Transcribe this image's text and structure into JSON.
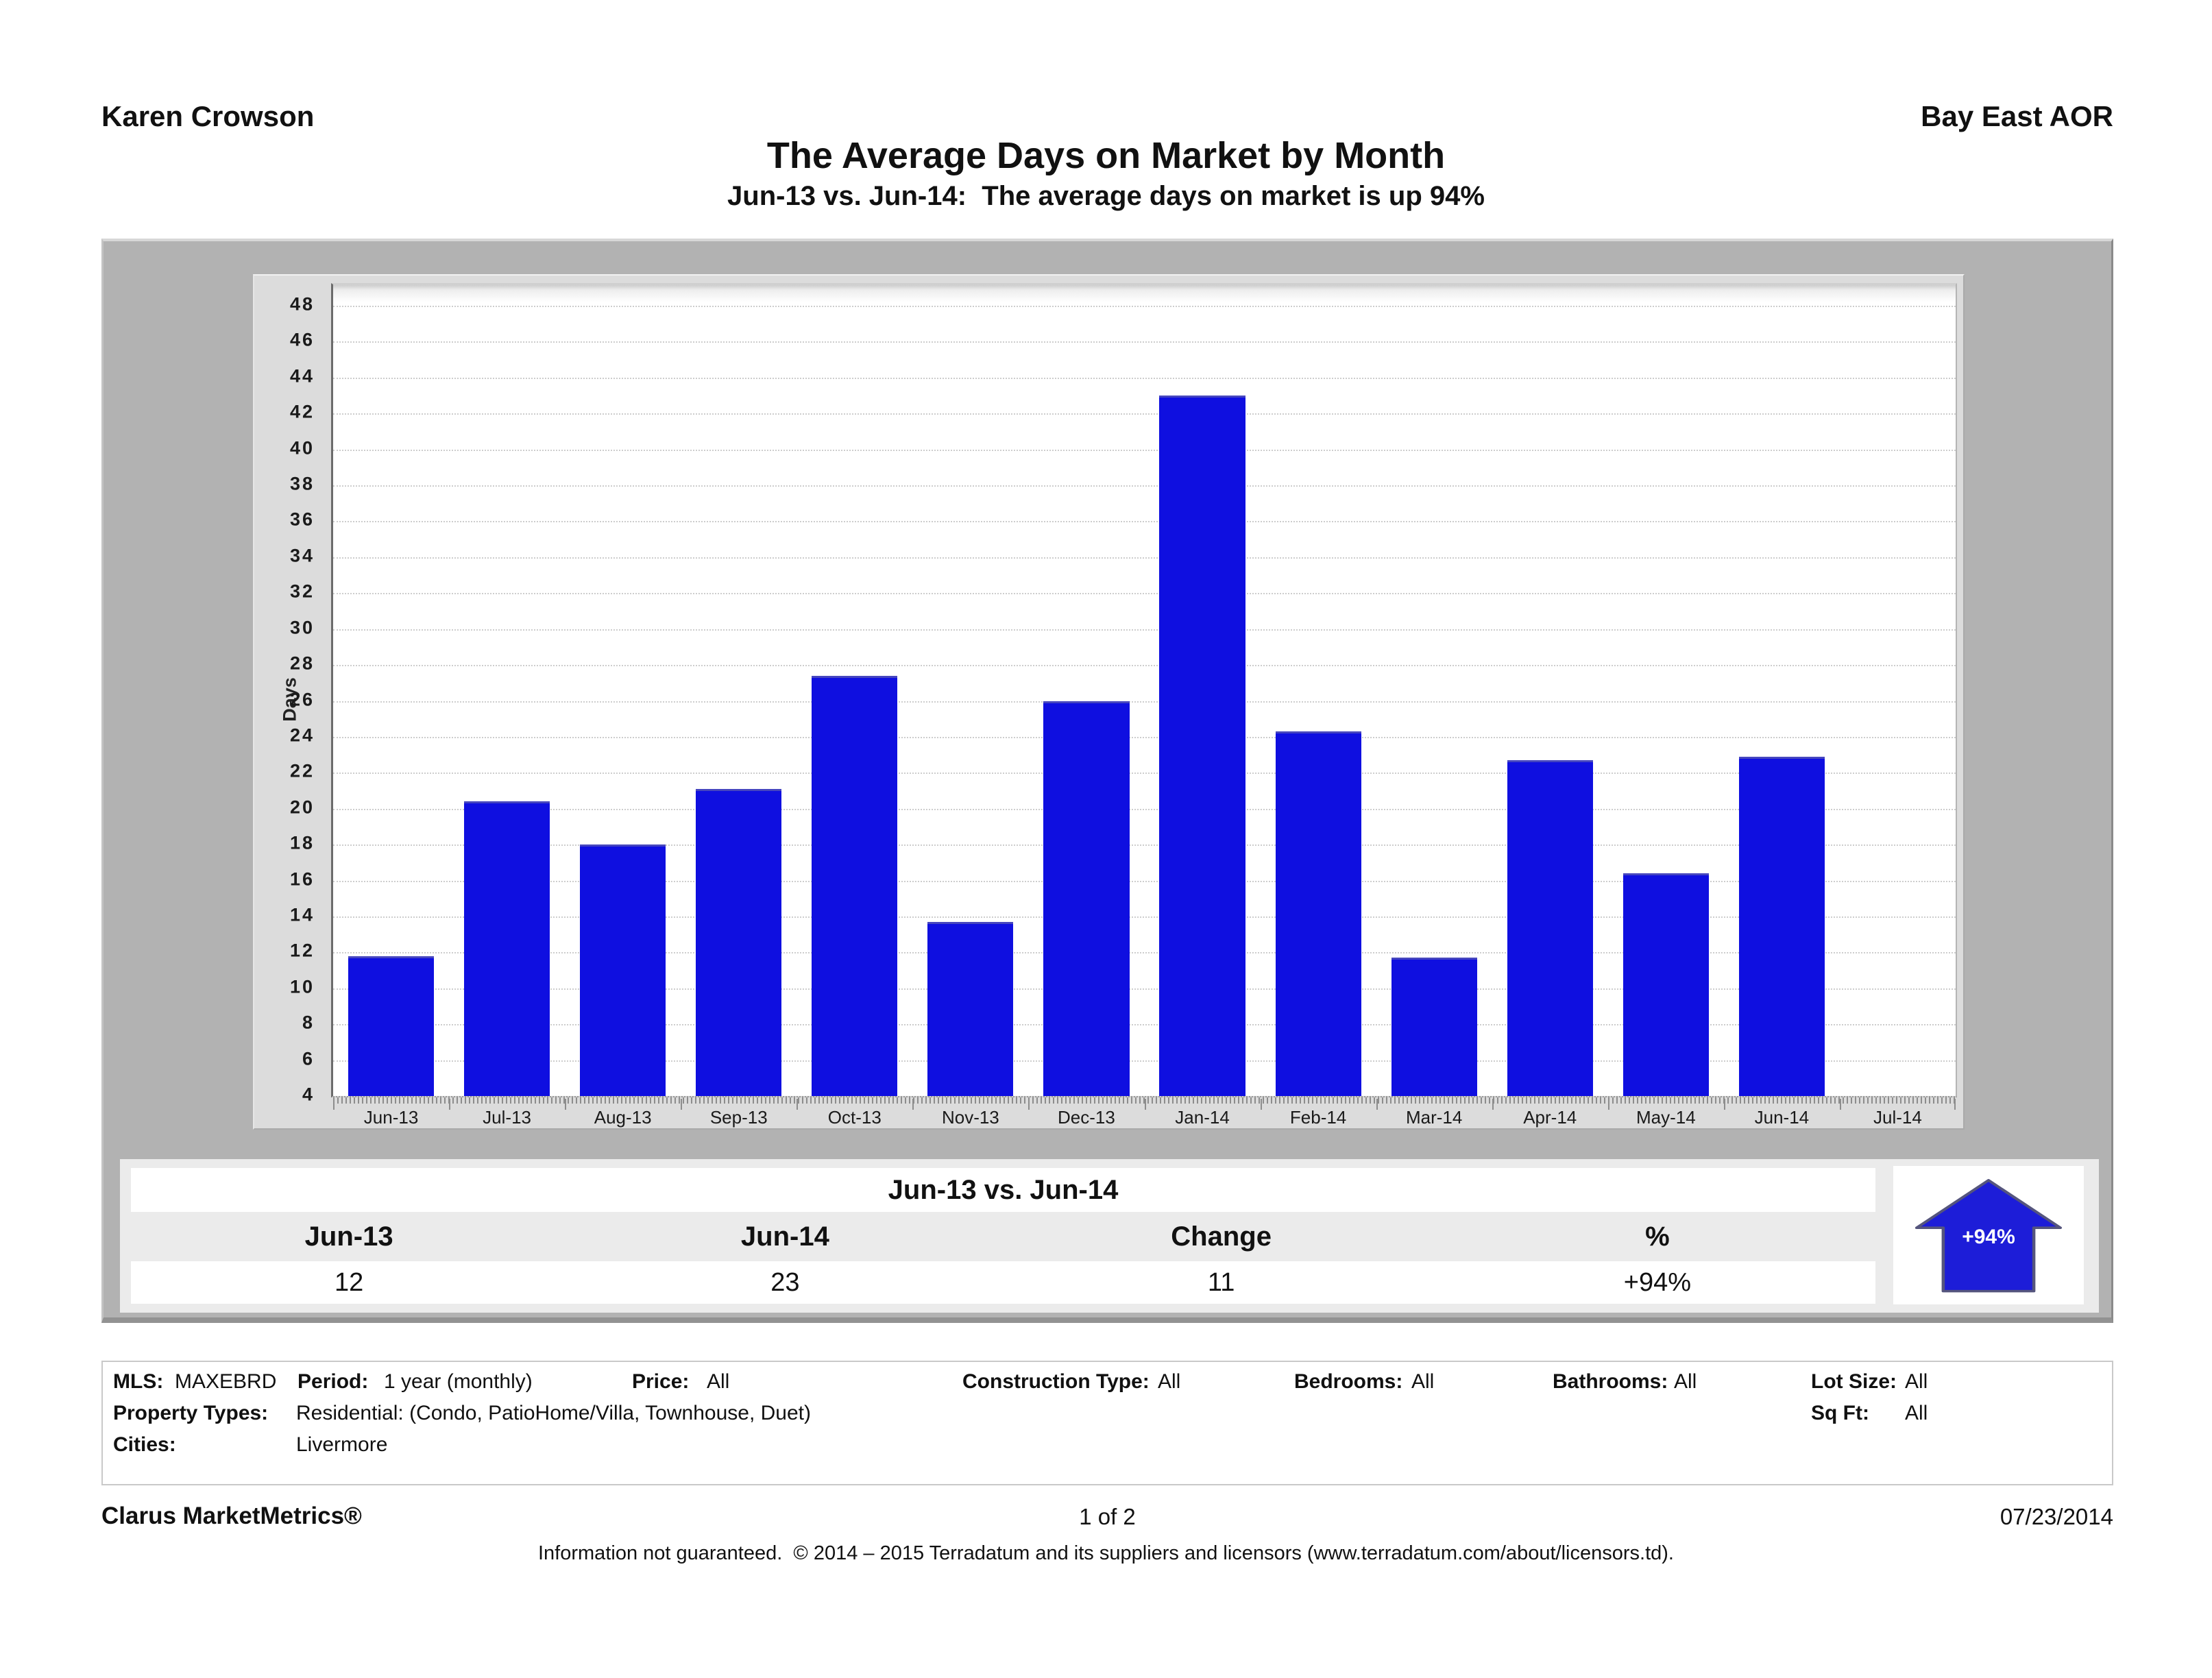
{
  "header": {
    "agent_name": "Karen Crowson",
    "organization": "Bay East AOR",
    "title": "The Average Days on Market by Month",
    "subtitle": "Jun-13 vs. Jun-14:  The average days on market is up 94%"
  },
  "chart_data": {
    "type": "bar",
    "title": "The Average Days on Market by Month",
    "categories": [
      "Jun-13",
      "Jul-13",
      "Aug-13",
      "Sep-13",
      "Oct-13",
      "Nov-13",
      "Dec-13",
      "Jan-14",
      "Feb-14",
      "Mar-14",
      "Apr-14",
      "May-14",
      "Jun-14",
      "Jul-14"
    ],
    "values": [
      11.8,
      20.4,
      18,
      21.1,
      27.4,
      13.7,
      26,
      43,
      24.3,
      11.7,
      22.7,
      16.4,
      22.9,
      null
    ],
    "xlabel": "",
    "ylabel": "Days",
    "ylim": [
      4,
      48
    ],
    "ytick_step": 2,
    "grid": true,
    "legend": false,
    "bar_color": "#0f0fe0"
  },
  "summary": {
    "title": "Jun-13 vs. Jun-14",
    "columns": [
      "Jun-13",
      "Jun-14",
      "Change",
      "%"
    ],
    "values": [
      "12",
      "23",
      "11",
      "+94%"
    ],
    "arrow": {
      "label": "+94%",
      "direction": "up",
      "color": "#1d1dd8"
    }
  },
  "filters": {
    "mls_label": "MLS:",
    "mls": "MAXEBRD",
    "period_label": "Period:",
    "period": "1 year (monthly)",
    "price_label": "Price:",
    "price": "All",
    "construction_label": "Construction Type:",
    "construction": "All",
    "bedrooms_label": "Bedrooms:",
    "bedrooms": "All",
    "bathrooms_label": "Bathrooms:",
    "bathrooms": "All",
    "lot_size_label": "Lot Size:",
    "lot_size": "All",
    "sq_ft_label": "Sq Ft:",
    "sq_ft": "All",
    "property_types_label": "Property Types:",
    "property_types": "Residential: (Condo, PatioHome/Villa, Townhouse, Duet)",
    "cities_label": "Cities:",
    "cities": "Livermore"
  },
  "footer": {
    "brand": "Clarus MarketMetrics®",
    "page": "1 of 2",
    "date": "07/23/2014",
    "disclaimer": "Information not guaranteed.  © 2014 – 2015 Terradatum and its suppliers and licensors (www.terradatum.com/about/licensors.td)."
  }
}
